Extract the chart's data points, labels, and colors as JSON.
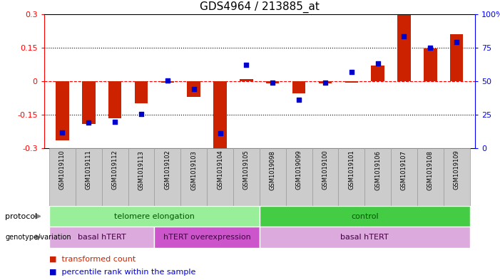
{
  "title": "GDS4964 / 213885_at",
  "samples": [
    "GSM1019110",
    "GSM1019111",
    "GSM1019112",
    "GSM1019113",
    "GSM1019102",
    "GSM1019103",
    "GSM1019104",
    "GSM1019105",
    "GSM1019098",
    "GSM1019099",
    "GSM1019100",
    "GSM1019101",
    "GSM1019106",
    "GSM1019107",
    "GSM1019108",
    "GSM1019109"
  ],
  "bar_values": [
    -0.265,
    -0.19,
    -0.165,
    -0.1,
    -0.005,
    -0.07,
    -0.305,
    0.01,
    -0.01,
    -0.055,
    -0.01,
    -0.005,
    0.07,
    0.295,
    0.145,
    0.21
  ],
  "dot_values_pct": [
    12,
    19,
    20,
    25.5,
    50.5,
    44,
    11.5,
    62,
    49,
    36,
    49,
    57,
    63,
    83.5,
    75,
    79
  ],
  "ylim": [
    -0.3,
    0.3
  ],
  "yticks": [
    -0.3,
    -0.15,
    0.0,
    0.15,
    0.3
  ],
  "ytick_labels": [
    "-0.3",
    "-0.15",
    "0",
    "0.15",
    "0.3"
  ],
  "y2ticks": [
    0,
    25,
    50,
    75,
    100
  ],
  "y2tick_labels": [
    "0",
    "25",
    "50",
    "75",
    "100%"
  ],
  "bar_color": "#cc2200",
  "dot_color": "#0000cc",
  "bg_color": "#ffffff",
  "protocol_groups": [
    {
      "label": "telomere elongation",
      "start": 0,
      "end": 7,
      "color": "#99ee99"
    },
    {
      "label": "control",
      "start": 8,
      "end": 15,
      "color": "#44cc44"
    }
  ],
  "genotype_groups": [
    {
      "label": "basal hTERT",
      "start": 0,
      "end": 3,
      "color": "#ddaadd"
    },
    {
      "label": "hTERT overexpression",
      "start": 4,
      "end": 7,
      "color": "#cc55cc"
    },
    {
      "label": "basal hTERT",
      "start": 8,
      "end": 15,
      "color": "#ddaadd"
    }
  ],
  "title_fontsize": 11,
  "bar_width": 0.5,
  "dot_size": 22,
  "xtick_cell_color": "#cccccc",
  "xtick_border_color": "#999999",
  "arrow_color": "#888888",
  "label_color_proto": "#005500",
  "label_color_geno": "#440044"
}
